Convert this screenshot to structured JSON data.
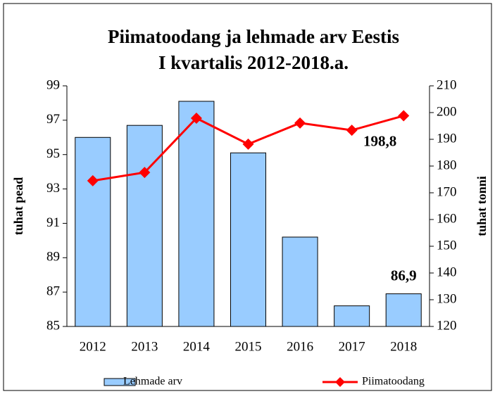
{
  "chart_data": {
    "type": "bar-line",
    "title": [
      "Piimatoodang ja lehmade arv Eestis",
      "I kvartalis 2012-2018.a."
    ],
    "ylabel": "tuhat pead",
    "y2label": "tuhat tonni",
    "categories": [
      "2012",
      "2013",
      "2014",
      "2015",
      "2016",
      "2017",
      "2018"
    ],
    "series": [
      {
        "name": "Lehmade arv",
        "type": "bar",
        "color": "#99ccff",
        "axis": "y",
        "values": [
          96.0,
          96.7,
          98.1,
          95.1,
          90.2,
          86.2,
          86.9
        ],
        "value_labels": [
          null,
          null,
          null,
          null,
          null,
          null,
          "86,9"
        ]
      },
      {
        "name": "Piimatoodang",
        "type": "line",
        "color": "#ff0000",
        "axis": "y2",
        "values": [
          174.5,
          177.6,
          197.9,
          188.2,
          196.1,
          193.4,
          198.8
        ],
        "value_labels": [
          null,
          null,
          null,
          null,
          null,
          null,
          "198,8"
        ]
      }
    ],
    "ylim": [
      85,
      99
    ],
    "yticks": [
      85,
      87,
      89,
      91,
      93,
      95,
      97,
      99
    ],
    "y2lim": [
      120,
      210
    ],
    "y2ticks": [
      120,
      130,
      140,
      150,
      160,
      170,
      180,
      190,
      200,
      210
    ],
    "legend": "bottom"
  }
}
